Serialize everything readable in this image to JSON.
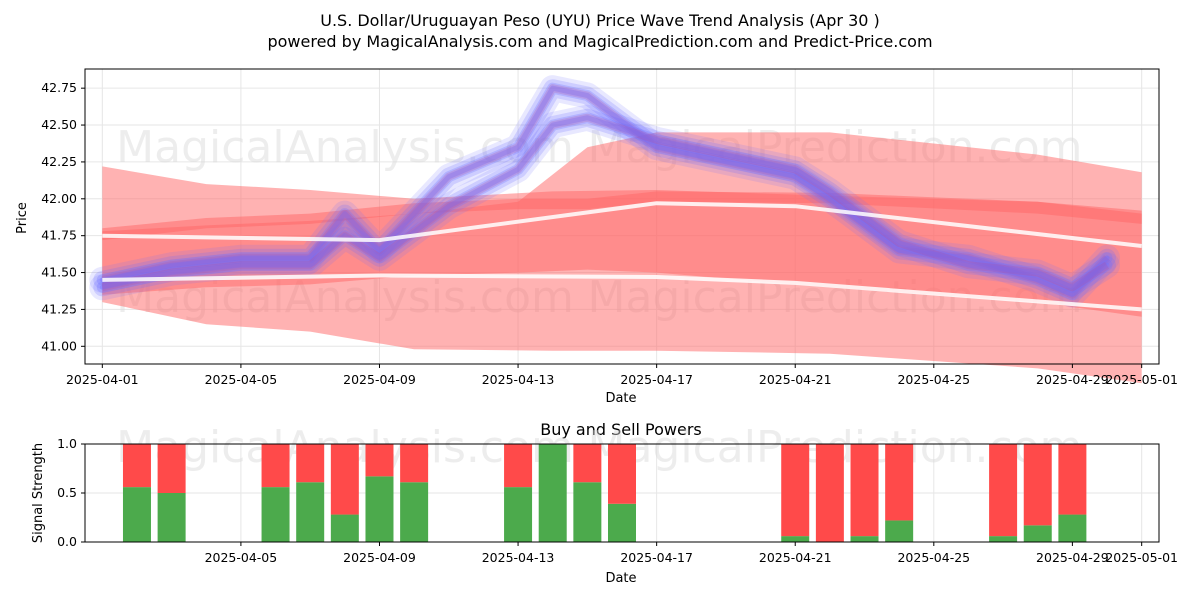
{
  "title_line1": "U.S. Dollar/Uruguayan Peso (UYU) Price Wave Trend Analysis (Apr 30 )",
  "title_line2": "powered by MagicalAnalysis.com and MagicalPrediction.com and Predict-Price.com",
  "watermarks": [
    "MagicalAnalysis.com",
    "MagicalPrediction.com"
  ],
  "colors": {
    "band_red": "#ff6666",
    "wave_blue": "#6f6fff",
    "buy_green": "#4caa4c",
    "sell_red": "#ff4a4a",
    "grid": "#e6e6e6"
  },
  "chart_data": [
    {
      "type": "area",
      "xlabel": "Date",
      "ylabel": "Price",
      "ylim": [
        40.88,
        42.88
      ],
      "xlim": [
        "2025-03-31T12:00",
        "2025-05-01T12:00"
      ],
      "x_ticks": [
        "2025-04-01",
        "2025-04-05",
        "2025-04-09",
        "2025-04-13",
        "2025-04-17",
        "2025-04-21",
        "2025-04-25",
        "2025-04-29",
        "2025-05-01"
      ],
      "y_ticks": [
        41.0,
        41.25,
        41.5,
        41.75,
        42.0,
        42.25,
        42.5,
        42.75
      ],
      "grid": true,
      "bands": [
        {
          "x": [
            "2025-04-01",
            "2025-04-04",
            "2025-04-07",
            "2025-04-10",
            "2025-04-14",
            "2025-04-17",
            "2025-04-22",
            "2025-04-28",
            "2025-05-01"
          ],
          "upper": [
            42.22,
            42.1,
            42.06,
            42.0,
            42.05,
            42.06,
            42.02,
            41.98,
            41.9
          ],
          "lower": [
            41.3,
            41.15,
            41.1,
            40.98,
            40.97,
            40.97,
            40.95,
            40.85,
            40.75
          ]
        },
        {
          "x": [
            "2025-04-01",
            "2025-04-04",
            "2025-04-07",
            "2025-04-10",
            "2025-04-13",
            "2025-04-15",
            "2025-04-17",
            "2025-04-22",
            "2025-04-28",
            "2025-05-01"
          ],
          "upper": [
            41.78,
            41.82,
            41.85,
            41.9,
            41.98,
            42.35,
            42.45,
            42.45,
            42.3,
            42.18
          ],
          "lower": [
            41.35,
            41.4,
            41.42,
            41.48,
            41.5,
            41.52,
            41.5,
            41.4,
            41.3,
            41.2
          ]
        },
        {
          "x": [
            "2025-04-01",
            "2025-04-04",
            "2025-04-07",
            "2025-04-10",
            "2025-04-13",
            "2025-04-15",
            "2025-04-17",
            "2025-04-22",
            "2025-04-28",
            "2025-05-01"
          ],
          "upper": [
            41.8,
            41.87,
            41.9,
            41.97,
            42.0,
            42.0,
            42.05,
            42.04,
            41.98,
            41.92
          ],
          "lower": [
            41.72,
            41.8,
            41.83,
            41.9,
            41.93,
            41.93,
            41.98,
            41.97,
            41.9,
            41.83
          ]
        }
      ],
      "waves": [
        {
          "x": [
            "2025-04-01",
            "2025-04-03",
            "2025-04-05",
            "2025-04-07",
            "2025-04-08",
            "2025-04-09",
            "2025-04-11",
            "2025-04-13",
            "2025-04-14",
            "2025-04-15",
            "2025-04-17",
            "2025-04-19",
            "2025-04-21",
            "2025-04-22",
            "2025-04-24",
            "2025-04-26",
            "2025-04-28",
            "2025-04-29",
            "2025-04-30"
          ],
          "y": [
            41.45,
            41.55,
            41.6,
            41.6,
            41.9,
            41.65,
            42.15,
            42.35,
            42.75,
            42.7,
            42.35,
            42.25,
            42.15,
            42.0,
            41.65,
            41.6,
            41.45,
            41.35,
            41.6
          ]
        },
        {
          "x": [
            "2025-04-01",
            "2025-04-03",
            "2025-04-05",
            "2025-04-07",
            "2025-04-08",
            "2025-04-09",
            "2025-04-11",
            "2025-04-13",
            "2025-04-14",
            "2025-04-15",
            "2025-04-17",
            "2025-04-19",
            "2025-04-21",
            "2025-04-22",
            "2025-04-24",
            "2025-04-26",
            "2025-04-28",
            "2025-04-29",
            "2025-04-30"
          ],
          "y": [
            41.4,
            41.5,
            41.55,
            41.55,
            41.75,
            41.6,
            41.95,
            42.2,
            42.5,
            42.55,
            42.4,
            42.3,
            42.2,
            42.05,
            41.7,
            41.55,
            41.5,
            41.4,
            41.55
          ]
        }
      ],
      "trend_lines": [
        {
          "x": [
            "2025-04-01",
            "2025-04-09",
            "2025-04-17",
            "2025-04-21",
            "2025-05-01"
          ],
          "y": [
            41.75,
            41.72,
            41.97,
            41.95,
            41.68
          ]
        },
        {
          "x": [
            "2025-04-01",
            "2025-04-09",
            "2025-04-17",
            "2025-04-21",
            "2025-05-01"
          ],
          "y": [
            41.45,
            41.48,
            41.47,
            41.43,
            41.25
          ]
        }
      ]
    },
    {
      "type": "bar",
      "title": "Buy and Sell Powers",
      "xlabel": "Date",
      "ylabel": "Signal Strength",
      "ylim": [
        0.0,
        1.0
      ],
      "y_ticks": [
        0.0,
        0.5,
        1.0
      ],
      "x_ticks": [
        "2025-04-05",
        "2025-04-09",
        "2025-04-13",
        "2025-04-17",
        "2025-04-21",
        "2025-04-25",
        "2025-04-29",
        "2025-05-01"
      ],
      "categories": [
        "2025-04-02",
        "2025-04-03",
        "2025-04-06",
        "2025-04-07",
        "2025-04-08",
        "2025-04-09",
        "2025-04-10",
        "2025-04-13",
        "2025-04-14",
        "2025-04-15",
        "2025-04-16",
        "2025-04-21",
        "2025-04-22",
        "2025-04-23",
        "2025-04-24",
        "2025-04-27",
        "2025-04-28",
        "2025-04-29"
      ],
      "series": [
        {
          "name": "buy",
          "values": [
            0.56,
            0.5,
            0.56,
            0.61,
            0.28,
            0.67,
            0.61,
            0.56,
            1.0,
            0.61,
            0.39,
            0.06,
            0.0,
            0.06,
            0.22,
            0.06,
            0.17,
            0.28
          ]
        },
        {
          "name": "sell",
          "values": [
            0.44,
            0.5,
            0.44,
            0.39,
            0.72,
            0.33,
            0.39,
            0.44,
            0.0,
            0.39,
            0.61,
            0.94,
            1.0,
            0.94,
            0.78,
            0.94,
            0.83,
            0.72
          ]
        }
      ]
    }
  ]
}
